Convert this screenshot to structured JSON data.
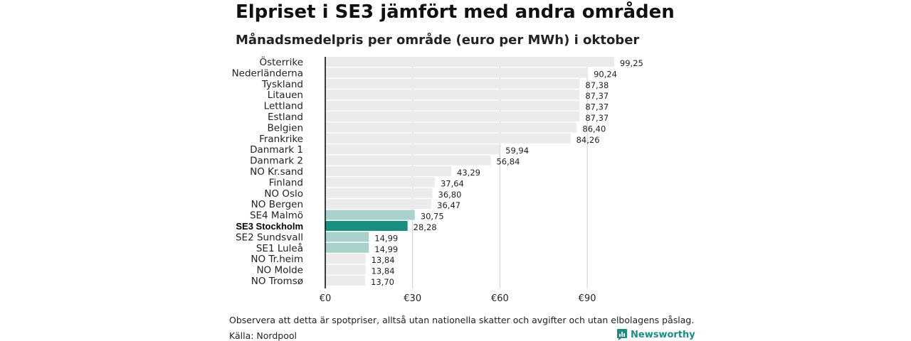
{
  "header": {
    "title": "Elpriset i SE3 jämfört med andra områden",
    "subtitle": "Månadsmedelpris per område (euro per MWh) i oktober"
  },
  "footer": {
    "note": "Observera att detta är spotpriser, alltså utan nationella skatter och avgifter och utan elbolagens påslag.",
    "source": "Källa: Nordpool",
    "brand": "Newsworthy"
  },
  "colors": {
    "highlight": "#1a8f80",
    "se_other": "#a8d2cb",
    "default": "#ebebeb",
    "grid": "#cccccc",
    "axis": "#000000"
  },
  "chart_data": {
    "type": "bar",
    "orientation": "horizontal",
    "categories": [
      "Österrike",
      "Nederländerna",
      "Tyskland",
      "Litauen",
      "Lettland",
      "Estland",
      "Belgien",
      "Frankrike",
      "Danmark  1",
      "Danmark  2",
      "NO Kr.sand",
      "Finland",
      "NO Oslo",
      "NO Bergen",
      "SE4  Malmö",
      "SE3 Stockholm",
      "SE2  Sundsvall",
      "SE1  Luleå",
      "NO Tr.heim",
      "NO Molde",
      "NO Tromsø"
    ],
    "values": [
      99.25,
      90.24,
      87.38,
      87.37,
      87.37,
      87.37,
      86.4,
      84.26,
      59.94,
      56.84,
      43.29,
      37.64,
      36.8,
      36.47,
      30.75,
      28.28,
      14.99,
      14.99,
      13.84,
      13.84,
      13.7
    ],
    "value_labels": [
      "99,25",
      "90,24",
      "87,38",
      "87,37",
      "87,37",
      "87,37",
      "86,40",
      "84,26",
      "59,94",
      "56,84",
      "43,29",
      "37,64",
      "36,80",
      "36,47",
      "30,75",
      "28,28",
      "14,99",
      "14,99",
      "13,84",
      "13,84",
      "13,70"
    ],
    "groups": [
      "default",
      "default",
      "default",
      "default",
      "default",
      "default",
      "default",
      "default",
      "default",
      "default",
      "default",
      "default",
      "default",
      "default",
      "se_other",
      "highlight",
      "se_other",
      "se_other",
      "default",
      "default",
      "default"
    ],
    "highlight_category": "SE3 Stockholm",
    "xlim": [
      0,
      100
    ],
    "xticks": [
      0,
      30,
      60,
      90
    ],
    "xtick_labels": [
      "€0",
      "€30",
      "€60",
      "€90"
    ],
    "grid": true
  }
}
